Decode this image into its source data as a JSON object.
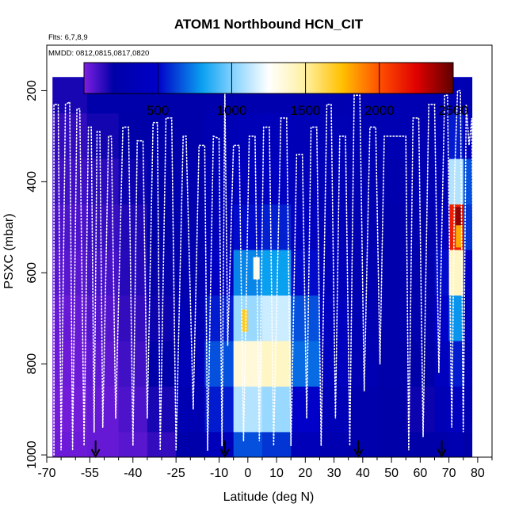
{
  "chart_data": {
    "type": "heatmap",
    "title": "ATOM1 Northbound HCN_CIT",
    "subtitle_flights": "Flts: 6,7,8,9",
    "subtitle_dates": "MMDD: 0812,0815,0817,0820",
    "xlabel": "Latitude (deg N)",
    "ylabel": "PSXC (mbar)",
    "xlim": [
      -70,
      85
    ],
    "ylim": [
      1005,
      100
    ],
    "x_ticks": [
      -70,
      -55,
      -40,
      -25,
      -10,
      0,
      10,
      20,
      30,
      40,
      50,
      60,
      70,
      80
    ],
    "x_tick_labels": [
      "-70",
      "-55",
      "-40",
      "-25",
      "-10",
      "0",
      "10",
      "20",
      "30",
      "40",
      "50",
      "60",
      "70",
      "80"
    ],
    "x_minor_ticks": [
      -65,
      -60,
      -50,
      -45,
      -35,
      -30,
      -20,
      -15,
      -5,
      5,
      15,
      25,
      35,
      45,
      55,
      65,
      75,
      85
    ],
    "y_ticks": [
      200,
      400,
      600,
      800,
      1000
    ],
    "y_tick_labels": [
      "200",
      "400",
      "600",
      "800",
      "1000"
    ],
    "colorbar": {
      "range": [
        0,
        2500
      ],
      "ticks": [
        500,
        1000,
        1500,
        2000,
        2500
      ],
      "tick_labels": [
        "500",
        "1000",
        "1500",
        "2000",
        "2500"
      ],
      "stops": [
        {
          "v": 0,
          "c": "#7f1fe0"
        },
        {
          "v": 200,
          "c": "#0000a8"
        },
        {
          "v": 500,
          "c": "#0000c8"
        },
        {
          "v": 800,
          "c": "#0aa0f0"
        },
        {
          "v": 1000,
          "c": "#80d0ff"
        },
        {
          "v": 1250,
          "c": "#ffffff"
        },
        {
          "v": 1500,
          "c": "#fff0a0"
        },
        {
          "v": 1750,
          "c": "#ffc000"
        },
        {
          "v": 2000,
          "c": "#ff5000"
        },
        {
          "v": 2250,
          "c": "#e00000"
        },
        {
          "v": 2500,
          "c": "#600000"
        }
      ]
    },
    "grid": {
      "lat_edges": [
        -68,
        -56,
        -45,
        -35,
        -25,
        -15,
        -5,
        5,
        15,
        25,
        35,
        45,
        55,
        65,
        70,
        75,
        78
      ],
      "pressure_edges": [
        170,
        250,
        350,
        450,
        550,
        650,
        750,
        850,
        950,
        1005
      ],
      "values": [
        [
          160,
          220,
          230,
          220,
          230,
          240,
          260,
          260,
          270,
          280,
          300,
          300,
          290,
          300,
          320,
          300
        ],
        [
          120,
          170,
          200,
          220,
          230,
          300,
          330,
          350,
          330,
          320,
          300,
          300,
          290,
          320,
          550,
          360
        ],
        [
          100,
          130,
          180,
          220,
          270,
          330,
          420,
          430,
          360,
          330,
          300,
          260,
          280,
          350,
          1100,
          650
        ],
        [
          80,
          110,
          150,
          200,
          250,
          350,
          520,
          560,
          420,
          350,
          280,
          250,
          260,
          420,
          2150,
          600
        ],
        [
          60,
          90,
          140,
          190,
          270,
          450,
          750,
          800,
          520,
          380,
          280,
          240,
          250,
          520,
          1400,
          480
        ],
        [
          40,
          70,
          120,
          180,
          300,
          550,
          1050,
          1150,
          650,
          420,
          300,
          240,
          250,
          500,
          780,
          420
        ],
        [
          30,
          50,
          100,
          200,
          360,
          650,
          1350,
          1400,
          700,
          420,
          300,
          220,
          210,
          420,
          550,
          360
        ],
        [
          20,
          40,
          80,
          160,
          300,
          550,
          1100,
          1050,
          500,
          330,
          250,
          200,
          180,
          330,
          420,
          300
        ],
        [
          30,
          40,
          60,
          120,
          220,
          380,
          650,
          600,
          350,
          280,
          240,
          200,
          200,
          230,
          280,
          230
        ]
      ],
      "hotspots": [
        {
          "lat": -1,
          "p": 705,
          "value": 1700
        },
        {
          "lat": 3,
          "p": 590,
          "value": 1300
        },
        {
          "lat": 73.5,
          "p": 480,
          "value": 2400
        },
        {
          "lat": 73.5,
          "p": 520,
          "value": 1800
        }
      ]
    },
    "flight_track": [
      [
        -67.5,
        1000
      ],
      [
        -67.5,
        230
      ],
      [
        -66,
        230
      ],
      [
        -65,
        990
      ],
      [
        -63.5,
        230
      ],
      [
        -62,
        225
      ],
      [
        -61,
        990
      ],
      [
        -59.5,
        240
      ],
      [
        -58.5,
        240
      ],
      [
        -57,
        980
      ],
      [
        -55.5,
        280
      ],
      [
        -54.5,
        280
      ],
      [
        -53.5,
        950
      ],
      [
        -52.5,
        290
      ],
      [
        -51.5,
        290
      ],
      [
        -50.5,
        940
      ],
      [
        -48.5,
        300
      ],
      [
        -47.5,
        300
      ],
      [
        -46,
        920
      ],
      [
        -43.5,
        280
      ],
      [
        -41.5,
        280
      ],
      [
        -40,
        980
      ],
      [
        -38.5,
        310
      ],
      [
        -36.5,
        310
      ],
      [
        -35,
        920
      ],
      [
        -33,
        270
      ],
      [
        -31.5,
        270
      ],
      [
        -30.5,
        990
      ],
      [
        -28.5,
        260
      ],
      [
        -26.5,
        260
      ],
      [
        -25,
        990
      ],
      [
        -22.5,
        300
      ],
      [
        -21.5,
        300
      ],
      [
        -19,
        900
      ],
      [
        -17,
        320
      ],
      [
        -15,
        320
      ],
      [
        -14,
        990
      ],
      [
        -12,
        300
      ],
      [
        -10,
        305
      ],
      [
        -9,
        980
      ],
      [
        -8,
        200
      ],
      [
        -7,
        760
      ],
      [
        -5,
        320
      ],
      [
        -3,
        320
      ],
      [
        -1.5,
        970
      ],
      [
        0.5,
        300
      ],
      [
        2.5,
        300
      ],
      [
        4,
        970
      ],
      [
        5.5,
        280
      ],
      [
        7.5,
        280
      ],
      [
        9,
        980
      ],
      [
        11.5,
        260
      ],
      [
        13.5,
        260
      ],
      [
        15,
        980
      ],
      [
        17,
        340
      ],
      [
        19,
        340
      ],
      [
        20.5,
        920
      ],
      [
        22,
        280
      ],
      [
        24,
        280
      ],
      [
        25.5,
        980
      ],
      [
        27.5,
        230
      ],
      [
        29,
        230
      ],
      [
        30.5,
        920
      ],
      [
        32,
        300
      ],
      [
        34,
        300
      ],
      [
        35.5,
        980
      ],
      [
        37,
        210
      ],
      [
        39,
        210
      ],
      [
        40.5,
        860
      ],
      [
        42.5,
        280
      ],
      [
        44.5,
        280
      ],
      [
        46,
        800
      ],
      [
        47.5,
        300
      ],
      [
        55,
        300
      ],
      [
        56,
        990
      ],
      [
        57.5,
        260
      ],
      [
        59.5,
        260
      ],
      [
        61,
        960
      ],
      [
        63,
        230
      ],
      [
        65,
        230
      ],
      [
        66.5,
        820
      ],
      [
        68.5,
        210
      ],
      [
        69.5,
        210
      ],
      [
        71,
        940
      ],
      [
        72,
        380
      ],
      [
        73,
        200
      ],
      [
        74,
        200
      ],
      [
        75,
        950
      ],
      [
        76,
        230
      ],
      [
        77,
        320
      ],
      [
        78,
        260
      ],
      [
        79,
        990
      ]
    ],
    "flight_markers": [
      -53,
      -8,
      38.5,
      67.5
    ]
  }
}
